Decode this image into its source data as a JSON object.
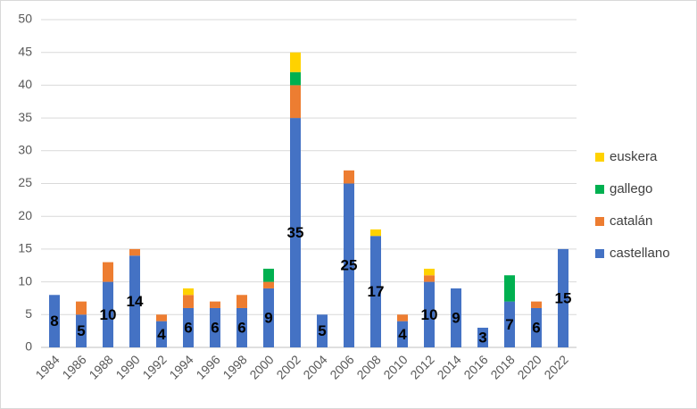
{
  "chart_data": {
    "type": "stacked-bar",
    "categories": [
      "1984",
      "1986",
      "1988",
      "1990",
      "1992",
      "1994",
      "1996",
      "1998",
      "2000",
      "2002",
      "2004",
      "2006",
      "2008",
      "2010",
      "2012",
      "2014",
      "2016",
      "2018",
      "2020",
      "2022"
    ],
    "series": [
      {
        "name": "castellano",
        "color": "#4472c4",
        "data_labels": true,
        "values": [
          8,
          5,
          10,
          14,
          4,
          6,
          6,
          6,
          9,
          35,
          5,
          25,
          17,
          4,
          10,
          9,
          3,
          7,
          6,
          15
        ]
      },
      {
        "name": "catalán",
        "color": "#ed7d31",
        "values": [
          0,
          2,
          3,
          1,
          1,
          2,
          1,
          2,
          1,
          5,
          0,
          2,
          0,
          1,
          1,
          0,
          0,
          0,
          1,
          0
        ]
      },
      {
        "name": "gallego",
        "color": "#00b050",
        "values": [
          0,
          0,
          0,
          0,
          0,
          0,
          0,
          0,
          2,
          2,
          0,
          0,
          0,
          0,
          0,
          0,
          0,
          4,
          0,
          0
        ]
      },
      {
        "name": "euskera",
        "color": "#ffd200",
        "values": [
          0,
          0,
          0,
          0,
          0,
          1,
          0,
          0,
          0,
          3,
          0,
          0,
          1,
          0,
          1,
          0,
          0,
          0,
          0,
          0
        ]
      }
    ],
    "ylim": [
      0,
      50
    ],
    "yticks": [
      0,
      5,
      10,
      15,
      20,
      25,
      30,
      35,
      40,
      45,
      50
    ],
    "grid": true,
    "legend": "right"
  }
}
